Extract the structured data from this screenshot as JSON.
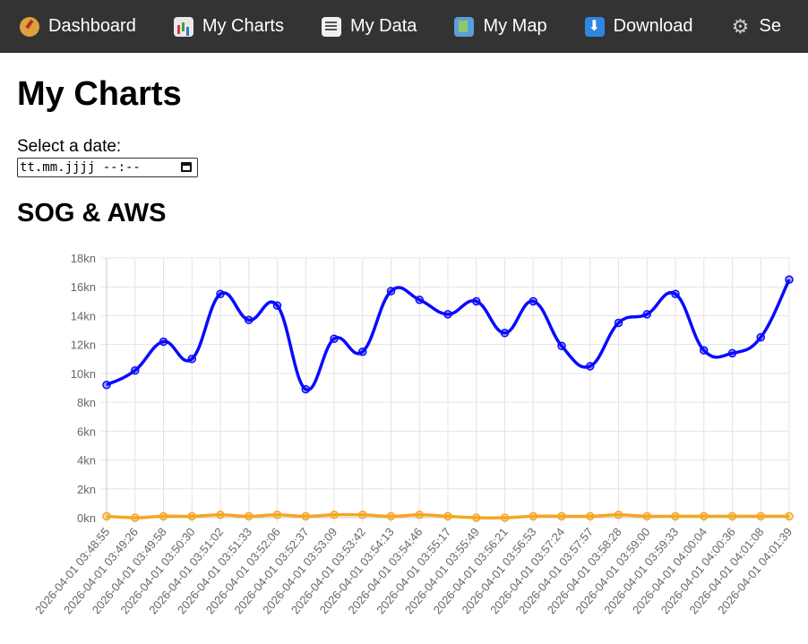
{
  "nav": {
    "items": [
      {
        "label": "Dashboard",
        "icon": "compass-icon"
      },
      {
        "label": "My Charts",
        "icon": "bar-chart-icon"
      },
      {
        "label": "My Data",
        "icon": "notepad-icon"
      },
      {
        "label": "My Map",
        "icon": "map-icon"
      },
      {
        "label": "Download",
        "icon": "download-arrow-icon"
      },
      {
        "label": "Se",
        "icon": "gear-icon"
      }
    ]
  },
  "page": {
    "title": "My Charts",
    "date_label": "Select a date:",
    "date_placeholder": "tt.mm.jjjj --:--",
    "chart_heading": "SOG & AWS"
  },
  "chart_data": {
    "type": "line",
    "title": "SOG & AWS",
    "xlabel": "",
    "ylabel": "",
    "ylim": [
      0,
      18
    ],
    "y_ticks": [
      0,
      2,
      4,
      6,
      8,
      10,
      12,
      14,
      16,
      18
    ],
    "y_tick_suffix": "kn",
    "grid": true,
    "categories": [
      "2026-04-01 03:48:55",
      "2026-04-01 03:49:26",
      "2026-04-01 03:49:58",
      "2026-04-01 03:50:30",
      "2026-04-01 03:51:02",
      "2026-04-01 03:51:33",
      "2026-04-01 03:52:06",
      "2026-04-01 03:52:37",
      "2026-04-01 03:53:09",
      "2026-04-01 03:53:42",
      "2026-04-01 03:54:13",
      "2026-04-01 03:54:46",
      "2026-04-01 03:55:17",
      "2026-04-01 03:55:49",
      "2026-04-01 03:56:21",
      "2026-04-01 03:56:53",
      "2026-04-01 03:57:24",
      "2026-04-01 03:57:57",
      "2026-04-01 03:58:28",
      "2026-04-01 03:59:00",
      "2026-04-01 03:59:33",
      "2026-04-01 04:00:04",
      "2026-04-01 04:00:36",
      "2026-04-01 04:01:08",
      "2026-04-01 04:01:39"
    ],
    "series": [
      {
        "color": "#0a0aff",
        "values": [
          9.2,
          10.2,
          12.2,
          11.0,
          15.5,
          13.7,
          14.7,
          8.9,
          12.4,
          11.5,
          15.7,
          15.1,
          14.1,
          15.0,
          12.8,
          15.0,
          11.9,
          10.5,
          13.5,
          14.1,
          15.5,
          11.6,
          11.4,
          12.5,
          16.5
        ]
      },
      {
        "color": "#f5a623",
        "values": [
          0.1,
          0.0,
          0.1,
          0.1,
          0.2,
          0.1,
          0.2,
          0.1,
          0.2,
          0.2,
          0.1,
          0.2,
          0.1,
          0.0,
          0.0,
          0.1,
          0.1,
          0.1,
          0.2,
          0.1,
          0.1,
          0.1,
          0.1,
          0.1,
          0.1
        ]
      }
    ]
  }
}
